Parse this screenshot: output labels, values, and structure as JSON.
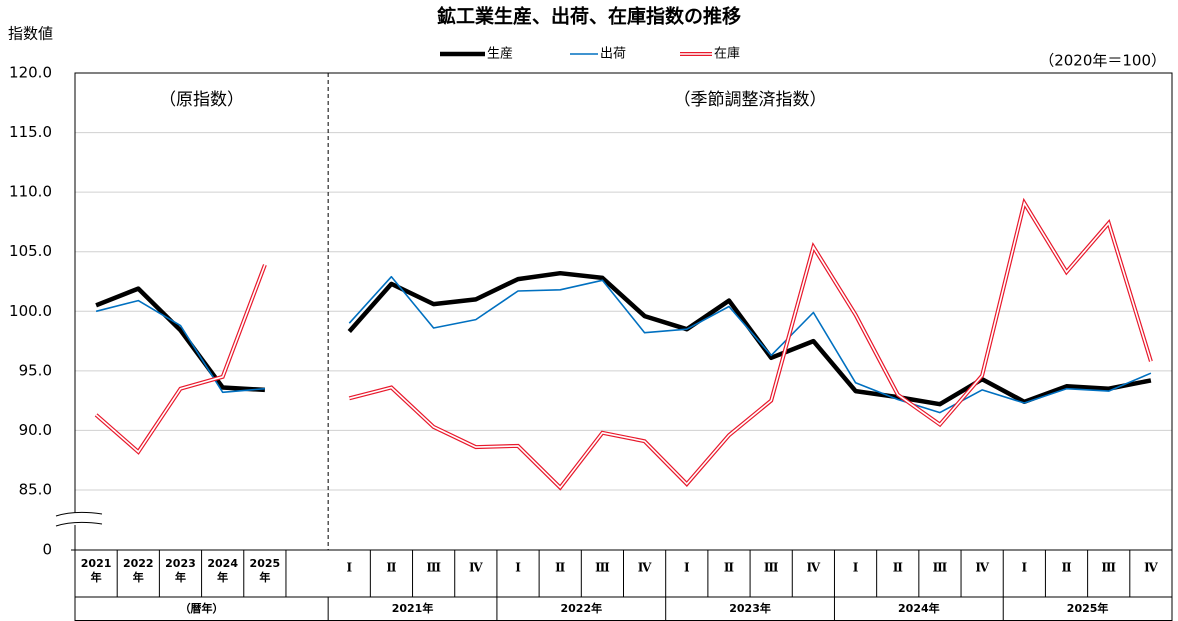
{
  "chart_data": {
    "type": "line",
    "title": "鉱工業生産、出荷、在庫指数の推移",
    "y_label": "指数値",
    "note": "（2020年＝100）",
    "ylim": [
      0,
      120
    ],
    "y_axis_break": true,
    "yticks": [
      0,
      {
        "value": 85,
        "label": "85.0"
      },
      {
        "value": 90,
        "label": "90.0"
      },
      {
        "value": 95,
        "label": "95.0"
      },
      {
        "value": 100,
        "label": "100.0"
      },
      {
        "value": 105,
        "label": "105.0"
      },
      {
        "value": 110,
        "label": "110.0"
      },
      {
        "value": 115,
        "label": "115.0"
      },
      {
        "value": 120,
        "label": "120.0"
      }
    ],
    "grid": true,
    "series": [
      {
        "name": "生産",
        "color": "#000000",
        "line_style": "thick"
      },
      {
        "name": "出荷",
        "color": "#0070c0",
        "line_style": "thin"
      },
      {
        "name": "在庫",
        "color": "#e8192c",
        "line_style": "double"
      }
    ],
    "panels": [
      {
        "label": "（原指数）",
        "groups": [
          {
            "label": "（暦年）",
            "categories": [
              [
                "2021",
                "年"
              ],
              [
                "2022",
                "年"
              ],
              [
                "2023",
                "年"
              ],
              [
                "2024",
                "年"
              ],
              [
                "2025",
                "年"
              ]
            ]
          }
        ],
        "values": [
          [
            100.5,
            101.9,
            98.4,
            93.6,
            93.4
          ],
          [
            100.0,
            100.9,
            98.8,
            93.2,
            93.5
          ],
          [
            91.3,
            88.2,
            93.5,
            94.5,
            103.9
          ]
        ]
      },
      {
        "label": "（季節調整済指数）",
        "groups": [
          {
            "label": "2021年",
            "categories": [
              "Ⅰ",
              "Ⅱ",
              "Ⅲ",
              "Ⅳ"
            ]
          },
          {
            "label": "2022年",
            "categories": [
              "Ⅰ",
              "Ⅱ",
              "Ⅲ",
              "Ⅳ"
            ]
          },
          {
            "label": "2023年",
            "categories": [
              "Ⅰ",
              "Ⅱ",
              "Ⅲ",
              "Ⅳ"
            ]
          },
          {
            "label": "2024年",
            "categories": [
              "Ⅰ",
              "Ⅱ",
              "Ⅲ",
              "Ⅳ"
            ]
          },
          {
            "label": "2025年",
            "categories": [
              "Ⅰ",
              "Ⅱ",
              "Ⅲ",
              "Ⅳ"
            ]
          }
        ],
        "values": [
          [
            98.3,
            102.3,
            100.6,
            101.0,
            102.7,
            103.2,
            102.8,
            99.6,
            98.5,
            100.9,
            96.1,
            97.5,
            93.3,
            92.8,
            92.2,
            94.3,
            92.4,
            93.7,
            93.5,
            94.2
          ],
          [
            99.0,
            102.9,
            98.6,
            99.3,
            101.7,
            101.8,
            102.6,
            98.2,
            98.5,
            100.4,
            96.3,
            99.9,
            94.0,
            92.6,
            91.5,
            93.4,
            92.3,
            93.5,
            93.3,
            94.8
          ],
          [
            92.7,
            93.6,
            90.3,
            88.6,
            88.7,
            85.2,
            89.8,
            89.1,
            85.5,
            89.6,
            92.5,
            105.4,
            99.7,
            93.0,
            90.5,
            94.6,
            109.1,
            103.3,
            107.4,
            95.8
          ]
        ]
      }
    ]
  }
}
